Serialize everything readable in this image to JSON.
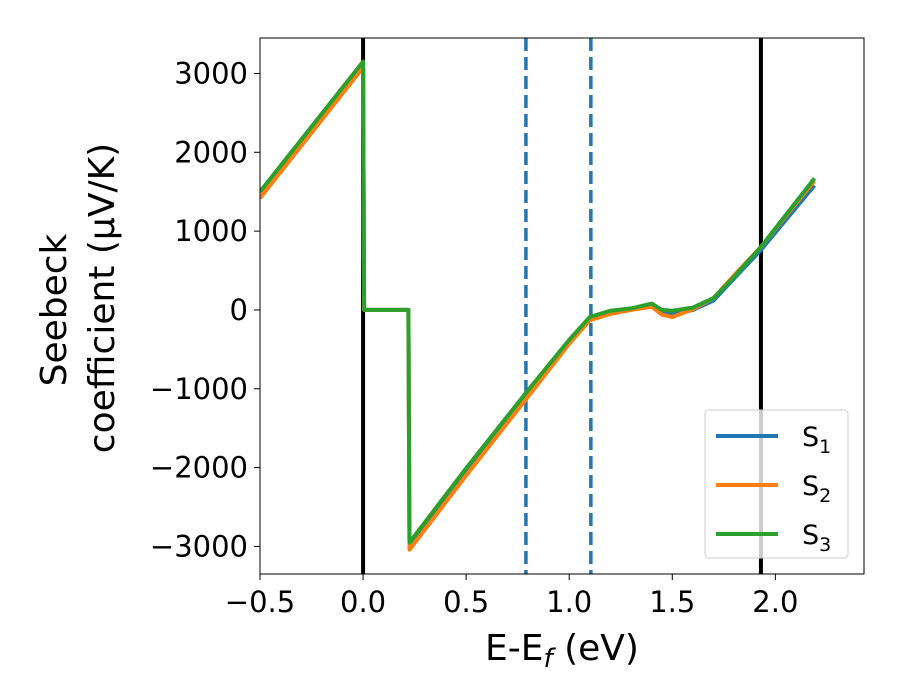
{
  "chart_data": {
    "type": "line",
    "xlabel": "E-E_f (eV)",
    "ylabel_lines": [
      "Seebeck",
      "coefficient  (μV/K)"
    ],
    "xlim": [
      -0.5,
      2.43
    ],
    "ylim": [
      -3350,
      3450
    ],
    "xticks": [
      -0.5,
      0.0,
      0.5,
      1.0,
      1.5,
      2.0
    ],
    "xtick_labels": [
      "−0.5",
      "0.0",
      "0.5",
      "1.0",
      "1.5",
      "2.0"
    ],
    "yticks": [
      -3000,
      -2000,
      -1000,
      0,
      1000,
      2000,
      3000
    ],
    "ytick_labels": [
      "−3000",
      "−2000",
      "−1000",
      "0",
      "1000",
      "2000",
      "3000"
    ],
    "grid": false,
    "legend_position": "lower-right",
    "vlines": [
      {
        "x": 0.0,
        "style": "solid",
        "color": "#000000"
      },
      {
        "x": 1.93,
        "style": "solid",
        "color": "#000000"
      },
      {
        "x": 0.79,
        "style": "dashed",
        "color": "#1f77b4"
      },
      {
        "x": 1.105,
        "style": "dashed",
        "color": "#1f77b4"
      }
    ],
    "series": [
      {
        "name": "S₁",
        "label_base": "S",
        "label_sub": "1",
        "color": "#1f77b4",
        "x": [
          -0.5,
          0.0,
          0.005,
          0.22,
          0.225,
          0.5,
          0.8,
          1.0,
          1.1,
          1.2,
          1.3,
          1.4,
          1.45,
          1.5,
          1.6,
          1.7,
          1.8,
          1.93,
          2.19
        ],
        "y": [
          1420,
          3080,
          0,
          0,
          -3000,
          -2080,
          -1080,
          -420,
          -120,
          -40,
          0,
          50,
          -40,
          -60,
          0,
          120,
          400,
          760,
          1580
        ]
      },
      {
        "name": "S₂",
        "label_base": "S",
        "label_sub": "2",
        "color": "#ff7f0e",
        "x": [
          -0.5,
          0.0,
          0.005,
          0.22,
          0.225,
          0.5,
          0.8,
          1.0,
          1.1,
          1.2,
          1.3,
          1.4,
          1.45,
          1.5,
          1.6,
          1.7,
          1.8,
          1.93,
          2.19
        ],
        "y": [
          1420,
          3080,
          0,
          0,
          -3040,
          -2100,
          -1100,
          -430,
          -130,
          -50,
          0,
          40,
          -60,
          -90,
          10,
          150,
          440,
          800,
          1640
        ]
      },
      {
        "name": "S₃",
        "label_base": "S",
        "label_sub": "3",
        "color": "#2ca02c",
        "x": [
          -0.5,
          0.0,
          0.005,
          0.22,
          0.225,
          0.5,
          0.8,
          1.0,
          1.1,
          1.2,
          1.3,
          1.4,
          1.45,
          1.5,
          1.6,
          1.7,
          1.8,
          1.93,
          2.19
        ],
        "y": [
          1500,
          3150,
          0,
          0,
          -2950,
          -2010,
          -1020,
          -380,
          -90,
          -10,
          20,
          80,
          0,
          -10,
          30,
          150,
          420,
          800,
          1670
        ]
      }
    ]
  }
}
